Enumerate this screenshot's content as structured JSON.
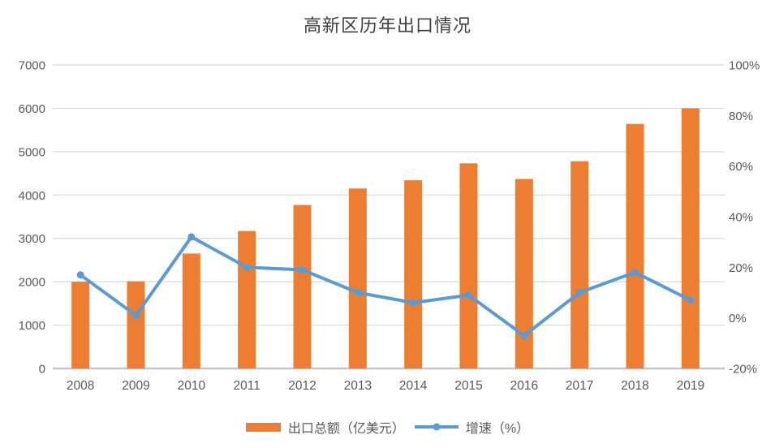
{
  "title": "高新区历年出口情况",
  "chart_data": {
    "type": "combo-bar-line",
    "categories": [
      "2008",
      "2009",
      "2010",
      "2011",
      "2012",
      "2013",
      "2014",
      "2015",
      "2016",
      "2017",
      "2018",
      "2019"
    ],
    "series": [
      {
        "name": "出口总额（亿美元）",
        "type": "bar",
        "axis": "left",
        "color": "#ED7D31",
        "values": [
          2000,
          2010,
          2650,
          3170,
          3770,
          4150,
          4340,
          4730,
          4370,
          4780,
          5640,
          6000
        ]
      },
      {
        "name": "增速（%）",
        "type": "line",
        "axis": "right",
        "color": "#5B9BD5",
        "values": [
          17,
          1,
          32,
          20,
          19,
          10,
          6,
          9,
          -7,
          10,
          18,
          7
        ]
      }
    ],
    "left_axis": {
      "min": 0,
      "max": 7000,
      "step": 1000,
      "tick_labels": [
        "0",
        "1000",
        "2000",
        "3000",
        "4000",
        "5000",
        "6000",
        "7000"
      ]
    },
    "right_axis": {
      "min": -20,
      "max": 100,
      "step": 20,
      "tick_labels": [
        "-20%",
        "0%",
        "20%",
        "40%",
        "60%",
        "80%",
        "100%"
      ]
    },
    "grid": true,
    "legend_position": "bottom",
    "colors": {
      "bar": "#ED7D31",
      "line": "#5B9BD5",
      "gridline": "#D9D9D9",
      "baseline": "#C6C6C6",
      "axis_text": "#595959",
      "title_text": "#3F3F3F"
    }
  }
}
